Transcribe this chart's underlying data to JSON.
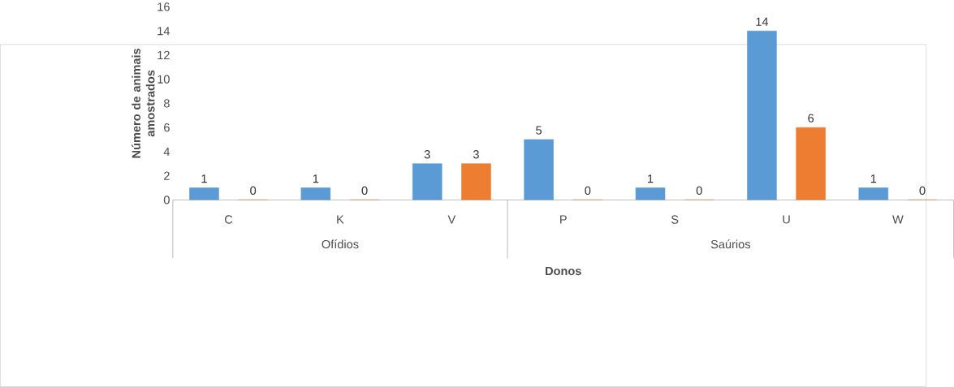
{
  "chart_data": {
    "type": "bar",
    "xlabel": "Donos",
    "ylabel": "Número de animais amostrados",
    "categories": [
      "C",
      "K",
      "V",
      "P",
      "S",
      "U",
      "W"
    ],
    "series": [
      {
        "color": "#5b9bd5",
        "values": [
          1,
          1,
          3,
          5,
          1,
          14,
          1
        ]
      },
      {
        "color": "#ed7d31",
        "values": [
          0,
          0,
          3,
          0,
          0,
          6,
          0
        ]
      }
    ],
    "ylim": [
      0,
      16
    ],
    "yticks": [
      0,
      2,
      4,
      6,
      8,
      10,
      12,
      14,
      16
    ],
    "data_labels": true,
    "annotations": [
      "Ofídios",
      "Saúrios"
    ]
  }
}
